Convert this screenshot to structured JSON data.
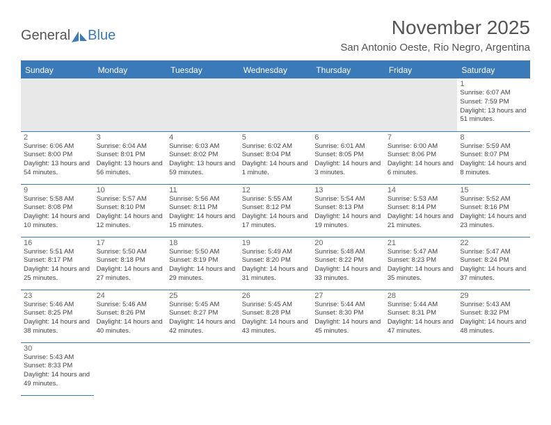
{
  "brand": {
    "part1": "General",
    "part2": "Blue"
  },
  "title": "November 2025",
  "location": "San Antonio Oeste, Rio Negro, Argentina",
  "colors": {
    "accent": "#3a7ab8",
    "header_bg": "#3a7ab8",
    "empty_bg": "#e8e8e8",
    "text": "#444"
  },
  "day_headers": [
    "Sunday",
    "Monday",
    "Tuesday",
    "Wednesday",
    "Thursday",
    "Friday",
    "Saturday"
  ],
  "weeks": [
    [
      null,
      null,
      null,
      null,
      null,
      null,
      {
        "n": "1",
        "sr": "6:07 AM",
        "ss": "7:59 PM",
        "dl": "13 hours and 51 minutes."
      }
    ],
    [
      {
        "n": "2",
        "sr": "6:06 AM",
        "ss": "8:00 PM",
        "dl": "13 hours and 54 minutes."
      },
      {
        "n": "3",
        "sr": "6:04 AM",
        "ss": "8:01 PM",
        "dl": "13 hours and 56 minutes."
      },
      {
        "n": "4",
        "sr": "6:03 AM",
        "ss": "8:02 PM",
        "dl": "13 hours and 59 minutes."
      },
      {
        "n": "5",
        "sr": "6:02 AM",
        "ss": "8:04 PM",
        "dl": "14 hours and 1 minute."
      },
      {
        "n": "6",
        "sr": "6:01 AM",
        "ss": "8:05 PM",
        "dl": "14 hours and 3 minutes."
      },
      {
        "n": "7",
        "sr": "6:00 AM",
        "ss": "8:06 PM",
        "dl": "14 hours and 6 minutes."
      },
      {
        "n": "8",
        "sr": "5:59 AM",
        "ss": "8:07 PM",
        "dl": "14 hours and 8 minutes."
      }
    ],
    [
      {
        "n": "9",
        "sr": "5:58 AM",
        "ss": "8:08 PM",
        "dl": "14 hours and 10 minutes."
      },
      {
        "n": "10",
        "sr": "5:57 AM",
        "ss": "8:10 PM",
        "dl": "14 hours and 12 minutes."
      },
      {
        "n": "11",
        "sr": "5:56 AM",
        "ss": "8:11 PM",
        "dl": "14 hours and 15 minutes."
      },
      {
        "n": "12",
        "sr": "5:55 AM",
        "ss": "8:12 PM",
        "dl": "14 hours and 17 minutes."
      },
      {
        "n": "13",
        "sr": "5:54 AM",
        "ss": "8:13 PM",
        "dl": "14 hours and 19 minutes."
      },
      {
        "n": "14",
        "sr": "5:53 AM",
        "ss": "8:14 PM",
        "dl": "14 hours and 21 minutes."
      },
      {
        "n": "15",
        "sr": "5:52 AM",
        "ss": "8:16 PM",
        "dl": "14 hours and 23 minutes."
      }
    ],
    [
      {
        "n": "16",
        "sr": "5:51 AM",
        "ss": "8:17 PM",
        "dl": "14 hours and 25 minutes."
      },
      {
        "n": "17",
        "sr": "5:50 AM",
        "ss": "8:18 PM",
        "dl": "14 hours and 27 minutes."
      },
      {
        "n": "18",
        "sr": "5:50 AM",
        "ss": "8:19 PM",
        "dl": "14 hours and 29 minutes."
      },
      {
        "n": "19",
        "sr": "5:49 AM",
        "ss": "8:20 PM",
        "dl": "14 hours and 31 minutes."
      },
      {
        "n": "20",
        "sr": "5:48 AM",
        "ss": "8:22 PM",
        "dl": "14 hours and 33 minutes."
      },
      {
        "n": "21",
        "sr": "5:47 AM",
        "ss": "8:23 PM",
        "dl": "14 hours and 35 minutes."
      },
      {
        "n": "22",
        "sr": "5:47 AM",
        "ss": "8:24 PM",
        "dl": "14 hours and 37 minutes."
      }
    ],
    [
      {
        "n": "23",
        "sr": "5:46 AM",
        "ss": "8:25 PM",
        "dl": "14 hours and 38 minutes."
      },
      {
        "n": "24",
        "sr": "5:46 AM",
        "ss": "8:26 PM",
        "dl": "14 hours and 40 minutes."
      },
      {
        "n": "25",
        "sr": "5:45 AM",
        "ss": "8:27 PM",
        "dl": "14 hours and 42 minutes."
      },
      {
        "n": "26",
        "sr": "5:45 AM",
        "ss": "8:28 PM",
        "dl": "14 hours and 43 minutes."
      },
      {
        "n": "27",
        "sr": "5:44 AM",
        "ss": "8:30 PM",
        "dl": "14 hours and 45 minutes."
      },
      {
        "n": "28",
        "sr": "5:44 AM",
        "ss": "8:31 PM",
        "dl": "14 hours and 47 minutes."
      },
      {
        "n": "29",
        "sr": "5:43 AM",
        "ss": "8:32 PM",
        "dl": "14 hours and 48 minutes."
      }
    ],
    [
      {
        "n": "30",
        "sr": "5:43 AM",
        "ss": "8:33 PM",
        "dl": "14 hours and 49 minutes."
      },
      null,
      null,
      null,
      null,
      null,
      null
    ]
  ],
  "labels": {
    "sunrise": "Sunrise:",
    "sunset": "Sunset:",
    "daylight": "Daylight:"
  }
}
